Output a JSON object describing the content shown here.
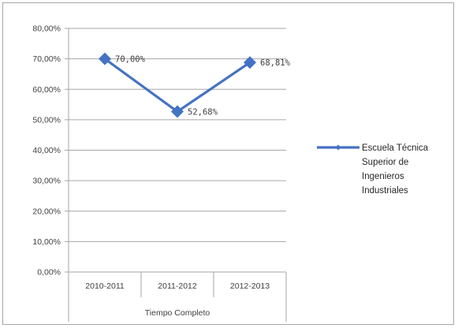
{
  "chart_data": {
    "type": "line",
    "categories": [
      "2010-2011",
      "2011-2012",
      "2012-2013"
    ],
    "group_label": "Tiempo Completo",
    "series": [
      {
        "name": "Escuela Técnica Superior de Ingenieros Industriales",
        "name_lines": [
          "Escuela Técnica",
          "Superior de",
          "Ingenieros",
          "Industriales"
        ],
        "values": [
          70.0,
          52.68,
          68.81
        ],
        "data_labels": [
          "70,00%",
          "52,68%",
          "68,81%"
        ],
        "color": "#4472c4",
        "marker": "diamond"
      }
    ],
    "y_ticks": [
      "0,00%",
      "10,00%",
      "20,00%",
      "30,00%",
      "40,00%",
      "50,00%",
      "60,00%",
      "70,00%",
      "80,00%"
    ],
    "ylim": [
      0,
      80
    ],
    "y_step": 10,
    "grid": true,
    "legend_position": "right"
  }
}
